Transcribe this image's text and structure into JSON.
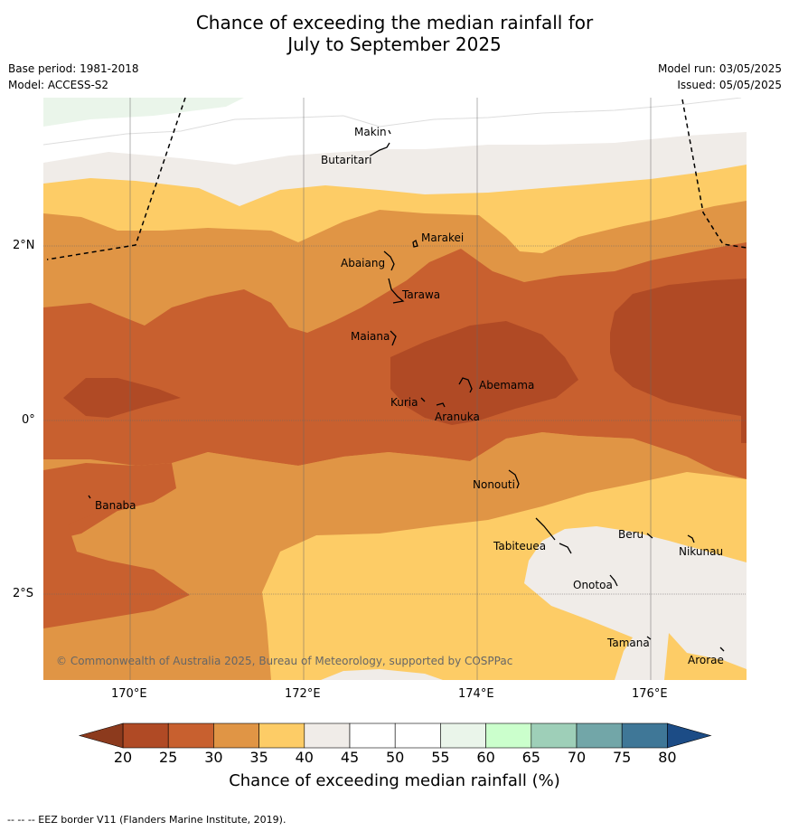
{
  "title_line1": "Chance of exceeding the median rainfall for",
  "title_line2": "July to September 2025",
  "base_period": "Base period: 1981-2018",
  "model": "Model: ACCESS-S2",
  "model_run": "Model run: 03/05/2025",
  "issued": "Issued: 05/05/2025",
  "x_ticks": [
    "170°E",
    "172°E",
    "174°E",
    "176°E"
  ],
  "y_ticks": [
    "2°N",
    "0°",
    "2°S"
  ],
  "places": [
    "Makin",
    "Butaritari",
    "Marakei",
    "Abaiang",
    "Tarawa",
    "Maiana",
    "Abemama",
    "Kuria",
    "Aranuka",
    "Nonouti",
    "Banaba",
    "Beru",
    "Tabiteuea",
    "Nikunau",
    "Onotoa",
    "Tamana",
    "Arorae"
  ],
  "copyright": "© Commonwealth of Australia 2025, Bureau of Meteorology, supported by COSPPac",
  "colorbar": {
    "ticks": [
      "20",
      "25",
      "30",
      "35",
      "40",
      "45",
      "50",
      "55",
      "60",
      "65",
      "70",
      "75",
      "80"
    ],
    "colors": {
      "below20": "#8c3a1d",
      "20-25": "#b04a25",
      "25-30": "#c8602f",
      "30-35": "#e09545",
      "35-40": "#fdcc66",
      "40-45": "#f0ece8",
      "45-50": "#ffffff",
      "50-55": "#ffffff",
      "55-60": "#eaf5ea",
      "60-65": "#cbffcc",
      "65-70": "#9ecfb8",
      "70-75": "#72a6a8",
      "75-80": "#3f7797",
      "above80": "#1c4c86"
    },
    "title": "Chance of exceeding median rainfall (%)"
  },
  "footnote": "--  --  -- EEZ border V11 (Flanders Marine Institute, 2019)."
}
